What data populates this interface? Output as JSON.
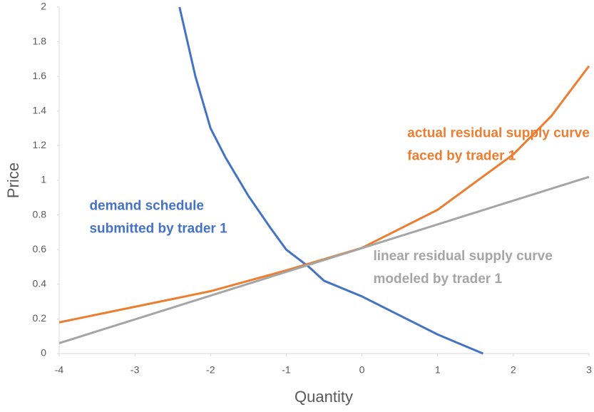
{
  "chart_data": {
    "type": "line",
    "xlabel": "Quantity",
    "ylabel": "Price",
    "xlim": [
      -4,
      3
    ],
    "xticks": [
      -4,
      -3,
      -2,
      -1,
      0,
      1,
      2,
      3
    ],
    "ylim": [
      0,
      2
    ],
    "yticks": [
      0,
      0.2,
      0.4,
      0.6,
      0.8,
      1,
      1.2,
      1.4,
      1.6,
      1.8,
      2
    ],
    "series": [
      {
        "name": "demand schedule submitted by trader 1",
        "color": "#4472c4",
        "x": [
          -2.41,
          -2.2,
          -2.0,
          -1.8,
          -1.5,
          -1.2,
          -1.0,
          -0.7,
          -0.5,
          0,
          0.5,
          1.0,
          1.6
        ],
        "values": [
          2.0,
          1.6,
          1.3,
          1.13,
          0.91,
          0.72,
          0.6,
          0.5,
          0.42,
          0.33,
          0.22,
          0.11,
          0
        ]
      },
      {
        "name": "actual residual supply curve faced by trader 1",
        "color": "#ed7d31",
        "x": [
          -4,
          -3,
          -2,
          -1,
          0,
          1,
          2,
          2.5,
          3
        ],
        "values": [
          0.18,
          0.27,
          0.36,
          0.48,
          0.61,
          0.83,
          1.15,
          1.37,
          1.66
        ]
      },
      {
        "name": "linear residual supply curve modeled by trader 1",
        "color": "#a5a5a5",
        "x": [
          -4,
          3
        ],
        "values": [
          0.06,
          1.02
        ]
      }
    ],
    "annotations": [
      {
        "lines": [
          "actual residual supply curve",
          "faced by trader 1"
        ],
        "color": "#ed7d31",
        "at": [
          0.6,
          1.27
        ]
      },
      {
        "lines": [
          "demand schedule",
          "submitted by trader 1"
        ],
        "color": "#4472c4",
        "at": [
          -3.6,
          0.85
        ]
      },
      {
        "lines": [
          "linear residual supply curve",
          "modeled by trader 1"
        ],
        "color": "#a5a5a5",
        "at": [
          0.15,
          0.56
        ]
      }
    ]
  }
}
